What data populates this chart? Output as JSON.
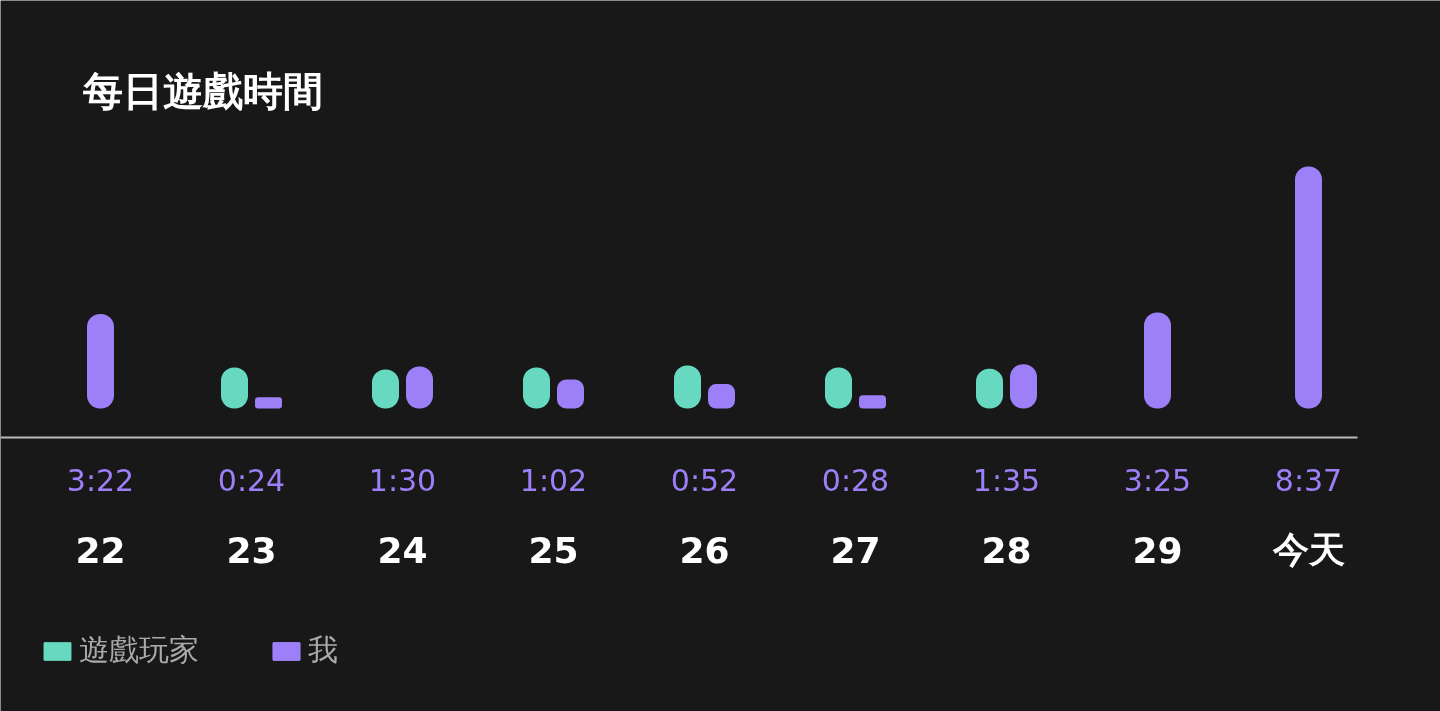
{
  "chart_data": {
    "type": "bar",
    "title": "每日遊戲時間",
    "categories": [
      "22",
      "23",
      "24",
      "25",
      "26",
      "27",
      "28",
      "29",
      "今天"
    ],
    "series": [
      {
        "name": "遊戲玩家",
        "color": "#66d9c0",
        "values": [
          null,
          1.46,
          1.39,
          1.46,
          1.53,
          1.46,
          1.42,
          null,
          null
        ]
      },
      {
        "name": "我",
        "color": "#9d80f7",
        "values": [
          3.37,
          0.4,
          1.5,
          1.03,
          0.87,
          0.47,
          1.58,
          3.42,
          8.62
        ],
        "value_labels": [
          "3:22",
          "0:24",
          "1:30",
          "1:02",
          "0:52",
          "0:28",
          "1:35",
          "3:25",
          "8:37"
        ]
      }
    ],
    "ylim": [
      0,
      8.62
    ],
    "tick_labels": false,
    "legend": "bottom left"
  }
}
